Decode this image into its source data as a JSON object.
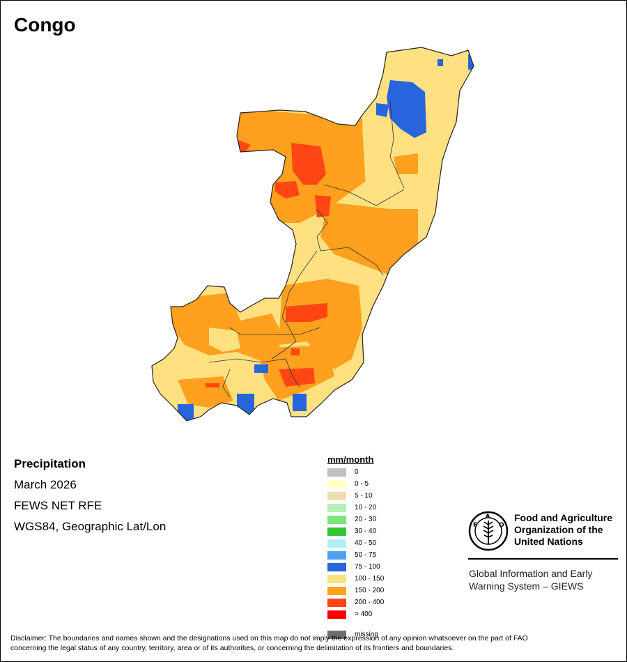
{
  "map": {
    "country": "Congo",
    "variable": "Precipitation",
    "period": "March 2026",
    "source": "FEWS NET RFE",
    "projection": "WGS84, Geographic Lat/Lon"
  },
  "legend": {
    "title": "mm/month",
    "classes": [
      {
        "label": "0",
        "color": "#c0c0c0"
      },
      {
        "label": "0 - 5",
        "color": "#ffffc8"
      },
      {
        "label": "5 - 10",
        "color": "#f0dcb4"
      },
      {
        "label": "10 - 20",
        "color": "#b4f0b4"
      },
      {
        "label": "20 - 30",
        "color": "#78e678"
      },
      {
        "label": "30 - 40",
        "color": "#32c832"
      },
      {
        "label": "40 - 50",
        "color": "#b4f0fa"
      },
      {
        "label": "50 - 75",
        "color": "#50a0f0"
      },
      {
        "label": "75 - 100",
        "color": "#2864dc"
      },
      {
        "label": "100 - 150",
        "color": "#ffe182"
      },
      {
        "label": "150 - 200",
        "color": "#ffa01e"
      },
      {
        "label": "200 - 400",
        "color": "#ff4614"
      },
      {
        "label": "> 400",
        "color": "#ff0000"
      }
    ],
    "missing": {
      "label": "missing",
      "color": "#6e6e6e"
    }
  },
  "org": {
    "name_lines": [
      "Food and Agriculture",
      "Organization of the",
      "United Nations"
    ],
    "system_lines": [
      "Global Information and Early",
      "Warning System – GIEWS"
    ]
  },
  "disclaimer": {
    "line1": "Disclaimer: The boundaries and names shown and the designations used on this map do not imply the expression of any opinion whatsoever on the part of FAO",
    "line2": "concerning the legal status of any country, territory, area or of its authorities, or concerning the delimitation of its frontiers and boundaries."
  }
}
